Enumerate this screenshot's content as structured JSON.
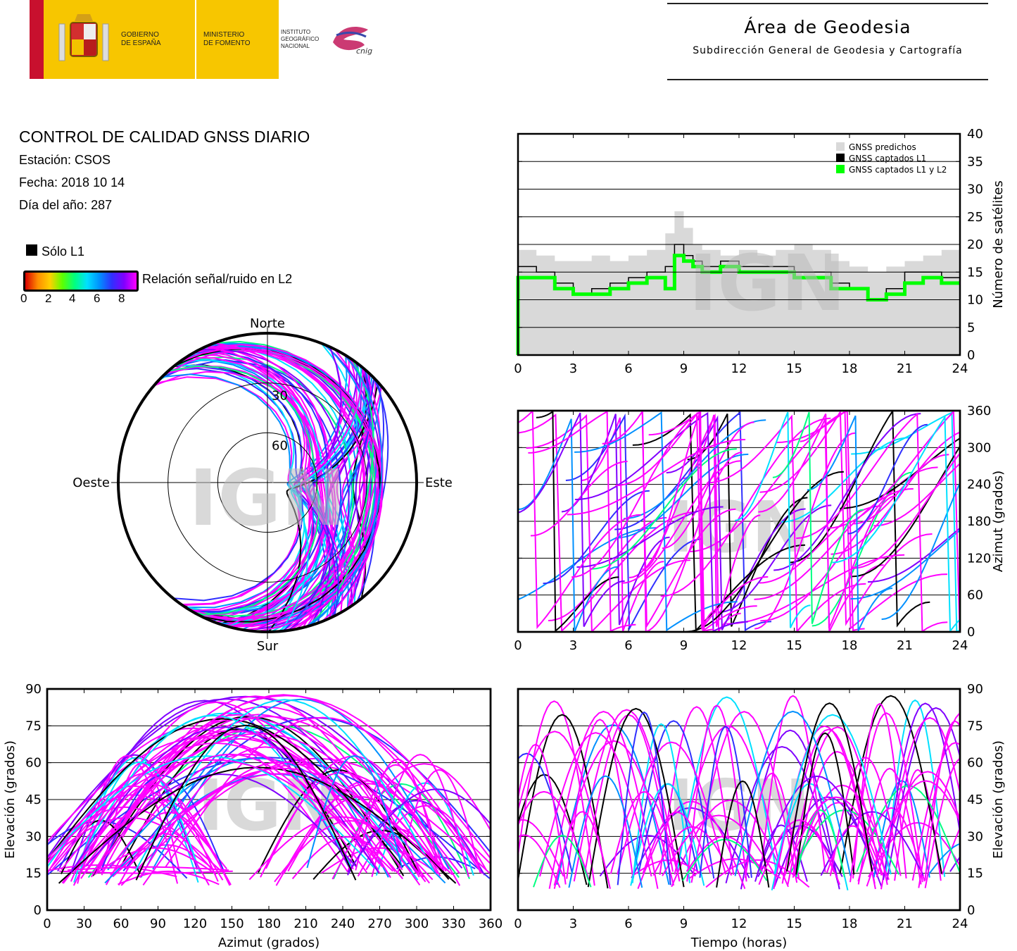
{
  "header": {
    "gov_line1": "GOBIERNO",
    "gov_line2": "DE ESPAÑA",
    "min_line1": "MINISTERIO",
    "min_line2": "DE FOMENTO",
    "ign_line1": "INSTITUTO",
    "ign_line2": "GEOGRÁFICO",
    "ign_line3": "NACIONAL",
    "cnig_logo_text": "cnig",
    "area_title": "Área de Geodesia",
    "area_subtitle": "Subdirección General de Geodesia y Cartografía"
  },
  "report": {
    "title": "CONTROL DE CALIDAD GNSS DIARIO",
    "station": "Estación: CSOS",
    "date": "Fecha: 2018 10 14",
    "doy": "Día del año: 287"
  },
  "legend": {
    "l1_only": "Sólo L1",
    "snr_label": "Relación señal/ruido en L2",
    "snr_ticks": [
      "0",
      "2",
      "4",
      "6",
      "8"
    ],
    "colors": {
      "l1_only": "#000000",
      "predicted": "#d9d9d9",
      "l1l2": "#00ff00",
      "high_snr": "#ff00ff"
    }
  },
  "watermark": "IGN",
  "chart_data": [
    {
      "id": "satellite-count",
      "type": "area",
      "ylabel": "Número de satélites",
      "xlim": [
        0,
        24
      ],
      "ylim": [
        0,
        40
      ],
      "xticks": [
        "0",
        "3",
        "6",
        "9",
        "12",
        "15",
        "18",
        "21",
        "24"
      ],
      "yticks": [
        "0",
        "5",
        "10",
        "15",
        "20",
        "25",
        "30",
        "35",
        "40"
      ],
      "legend_position": "top-right",
      "series": [
        {
          "name": "GNSS predichos",
          "x": [
            0,
            1,
            2,
            3,
            4,
            5,
            6,
            7,
            8,
            8.5,
            9,
            9.5,
            10,
            11,
            12,
            13,
            14,
            15,
            16,
            17,
            18,
            19,
            20,
            21,
            22,
            23,
            24
          ],
          "values": [
            19,
            18,
            17,
            17,
            18,
            17,
            18,
            19,
            22,
            26,
            23,
            20,
            19,
            18,
            19,
            18,
            19,
            20,
            19,
            17,
            16,
            15,
            16,
            17,
            18,
            19,
            21
          ]
        },
        {
          "name": "GNSS captados L1",
          "x": [
            0,
            1,
            2,
            3,
            4,
            5,
            6,
            7,
            8,
            8.5,
            9,
            9.5,
            10,
            11,
            12,
            13,
            14,
            15,
            16,
            17,
            18,
            19,
            20,
            21,
            22,
            23,
            24
          ],
          "values": [
            16,
            15,
            13,
            11,
            12,
            13,
            14,
            15,
            16,
            20,
            18,
            17,
            16,
            17,
            16,
            16,
            16,
            15,
            15,
            13,
            12,
            10,
            12,
            15,
            15,
            14,
            14
          ]
        },
        {
          "name": "GNSS captados L1 y L2",
          "x": [
            0,
            1,
            2,
            3,
            4,
            5,
            6,
            7,
            8,
            8.5,
            9,
            9.5,
            10,
            11,
            12,
            13,
            14,
            15,
            16,
            17,
            18,
            19,
            20,
            21,
            22,
            23,
            24
          ],
          "values": [
            14,
            14,
            12,
            11,
            11,
            12,
            13,
            14,
            12,
            18,
            17,
            16,
            15,
            16,
            15,
            15,
            15,
            14,
            14,
            12,
            12,
            10,
            11,
            13,
            14,
            13,
            13
          ]
        }
      ]
    },
    {
      "id": "azimuth-time",
      "type": "scatter",
      "ylabel": "Azimut (grados)",
      "xlim": [
        0,
        24
      ],
      "ylim": [
        0,
        360
      ],
      "xticks": [
        "0",
        "3",
        "6",
        "9",
        "12",
        "15",
        "18",
        "21",
        "24"
      ],
      "yticks": [
        "0",
        "60",
        "120",
        "180",
        "240",
        "300",
        "360"
      ]
    },
    {
      "id": "skyplot",
      "type": "scatter",
      "direction_labels": {
        "north": "Norte",
        "south": "Sur",
        "west": "Oeste",
        "east": "Este"
      },
      "ring_labels": [
        "30",
        "60"
      ]
    },
    {
      "id": "elevation-azimuth",
      "type": "scatter",
      "xlabel": "Azimut (grados)",
      "ylabel": "Elevación (grados)",
      "xlim": [
        0,
        360
      ],
      "ylim": [
        0,
        90
      ],
      "xticks": [
        "0",
        "30",
        "60",
        "90",
        "120",
        "150",
        "180",
        "210",
        "240",
        "270",
        "300",
        "330",
        "360"
      ],
      "yticks": [
        "0",
        "15",
        "30",
        "45",
        "60",
        "75",
        "90"
      ]
    },
    {
      "id": "elevation-time",
      "type": "scatter",
      "xlabel": "Tiempo (horas)",
      "ylabel": "Elevación (grados)",
      "xlim": [
        0,
        24
      ],
      "ylim": [
        0,
        90
      ],
      "xticks": [
        "0",
        "3",
        "6",
        "9",
        "12",
        "15",
        "18",
        "21",
        "24"
      ],
      "yticks": [
        "0",
        "15",
        "30",
        "45",
        "60",
        "75",
        "90"
      ]
    }
  ]
}
